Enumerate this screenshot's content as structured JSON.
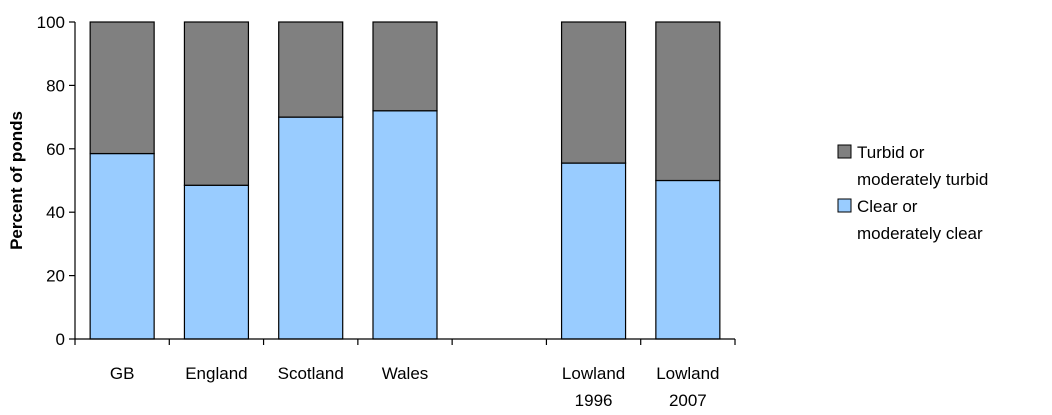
{
  "chart_data": {
    "type": "bar",
    "stacked": true,
    "categories": [
      "GB",
      "England",
      "Scotland",
      "Wales",
      "",
      "Lowland 1996",
      "Lowland 2007"
    ],
    "category_labels": [
      [
        "GB"
      ],
      [
        "England"
      ],
      [
        "Scotland"
      ],
      [
        "Wales"
      ],
      [],
      [
        "Lowland",
        "1996"
      ],
      [
        "Lowland",
        "2007"
      ]
    ],
    "series": [
      {
        "name": "Clear or moderately clear",
        "legend_lines": [
          "Clear or",
          "moderately clear"
        ],
        "color": "#99CCFF",
        "values": [
          58.5,
          48.5,
          70,
          72,
          null,
          55.5,
          50
        ]
      },
      {
        "name": "Turbid or moderately turbid",
        "legend_lines": [
          "Turbid or",
          "moderately turbid"
        ],
        "color": "#808080",
        "values": [
          41.5,
          51.5,
          30,
          28,
          null,
          44.5,
          50
        ]
      }
    ],
    "legend_order": [
      1,
      0
    ],
    "title": "",
    "xlabel": "",
    "ylabel": "Percent of ponds",
    "ylim": [
      0,
      100
    ],
    "yticks": [
      0,
      20,
      40,
      60,
      80,
      100
    ],
    "grid": false,
    "legend_position": "right"
  }
}
